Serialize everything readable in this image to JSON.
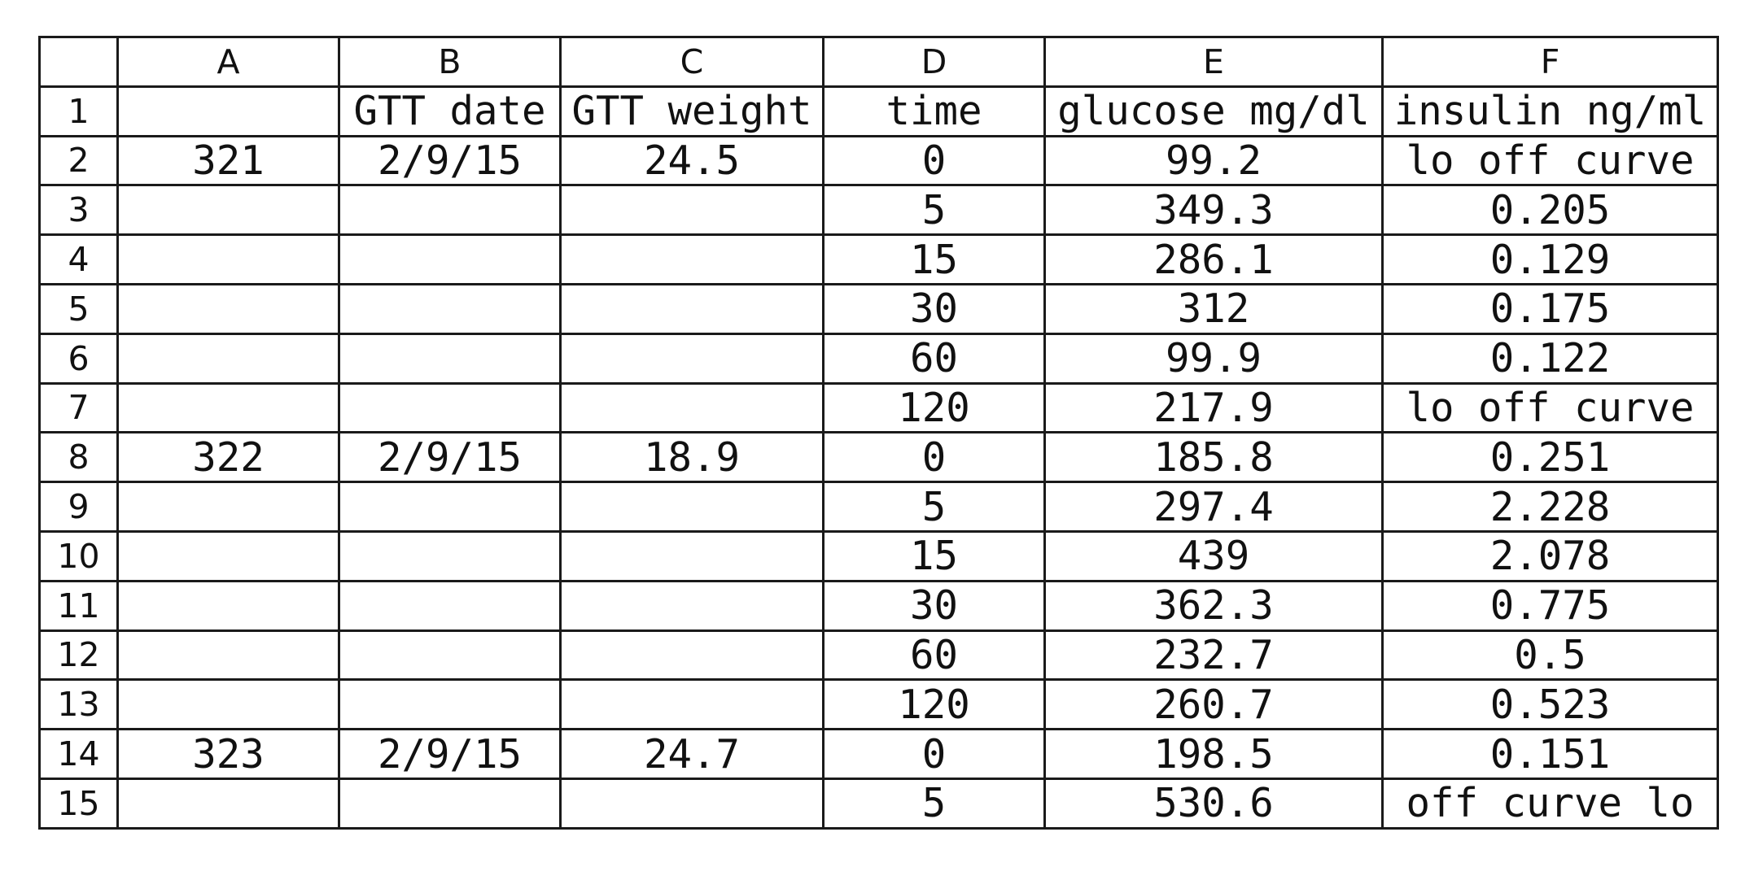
{
  "columns": [
    "",
    "A",
    "B",
    "C",
    "D",
    "E",
    "F"
  ],
  "header_row": {
    "num": "1",
    "cells": [
      "",
      "GTT date",
      "GTT weight",
      "time",
      "glucose mg/dl",
      "insulin ng/ml"
    ]
  },
  "rows": [
    {
      "num": "2",
      "cells": [
        "321",
        "2/9/15",
        "24.5",
        "0",
        "99.2",
        "lo off curve"
      ]
    },
    {
      "num": "3",
      "cells": [
        "",
        "",
        "",
        "5",
        "349.3",
        "0.205"
      ]
    },
    {
      "num": "4",
      "cells": [
        "",
        "",
        "",
        "15",
        "286.1",
        "0.129"
      ]
    },
    {
      "num": "5",
      "cells": [
        "",
        "",
        "",
        "30",
        "312",
        "0.175"
      ]
    },
    {
      "num": "6",
      "cells": [
        "",
        "",
        "",
        "60",
        "99.9",
        "0.122"
      ]
    },
    {
      "num": "7",
      "cells": [
        "",
        "",
        "",
        "120",
        "217.9",
        "lo off curve"
      ]
    },
    {
      "num": "8",
      "cells": [
        "322",
        "2/9/15",
        "18.9",
        "0",
        "185.8",
        "0.251"
      ]
    },
    {
      "num": "9",
      "cells": [
        "",
        "",
        "",
        "5",
        "297.4",
        "2.228"
      ]
    },
    {
      "num": "10",
      "cells": [
        "",
        "",
        "",
        "15",
        "439",
        "2.078"
      ]
    },
    {
      "num": "11",
      "cells": [
        "",
        "",
        "",
        "30",
        "362.3",
        "0.775"
      ]
    },
    {
      "num": "12",
      "cells": [
        "",
        "",
        "",
        "60",
        "232.7",
        "0.5"
      ]
    },
    {
      "num": "13",
      "cells": [
        "",
        "",
        "",
        "120",
        "260.7",
        "0.523"
      ]
    },
    {
      "num": "14",
      "cells": [
        "323",
        "2/9/15",
        "24.7",
        "0",
        "198.5",
        "0.151"
      ]
    },
    {
      "num": "15",
      "cells": [
        "",
        "",
        "",
        "5",
        "530.6",
        "off curve lo"
      ]
    }
  ]
}
